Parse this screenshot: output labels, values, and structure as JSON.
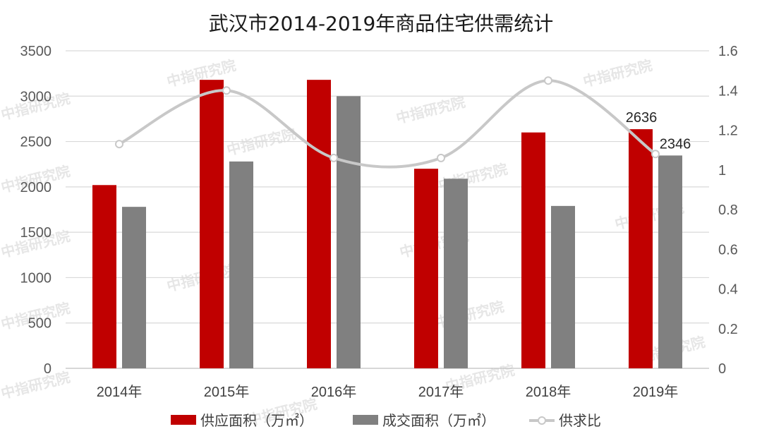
{
  "watermark": "中指研究院",
  "chart_data": {
    "type": "bar",
    "title": "武汉市2014-2019年商品住宅供需统计",
    "categories": [
      "2014年",
      "2015年",
      "2016年",
      "2017年",
      "2018年",
      "2019年"
    ],
    "series": [
      {
        "name": "供应面积（万㎡）",
        "kind": "bar",
        "axis": "left",
        "color": "#c00000",
        "values": [
          2020,
          3180,
          3180,
          2200,
          2600,
          2636
        ]
      },
      {
        "name": "成交面积（万㎡）",
        "kind": "bar",
        "axis": "left",
        "color": "#808080",
        "values": [
          1780,
          2280,
          3000,
          2090,
          1790,
          2346
        ]
      },
      {
        "name": "供求比",
        "kind": "line",
        "axis": "right",
        "color": "#c8c8c8",
        "values": [
          1.13,
          1.4,
          1.06,
          1.06,
          1.45,
          1.08
        ]
      }
    ],
    "y_left": {
      "min": 0,
      "max": 3500,
      "ticks": [
        "0",
        "500",
        "1000",
        "1500",
        "2000",
        "2500",
        "3000",
        "3500"
      ]
    },
    "y_right": {
      "min": 0,
      "max": 1.6,
      "ticks": [
        "0",
        "0.2",
        "0.4",
        "0.6",
        "0.8",
        "1",
        "1.2",
        "1.4",
        "1.6"
      ]
    },
    "data_labels": [
      {
        "series": 0,
        "index": 5,
        "text": "2636"
      },
      {
        "series": 1,
        "index": 5,
        "text": "2346"
      }
    ],
    "grid": true,
    "legend": "bottom"
  }
}
